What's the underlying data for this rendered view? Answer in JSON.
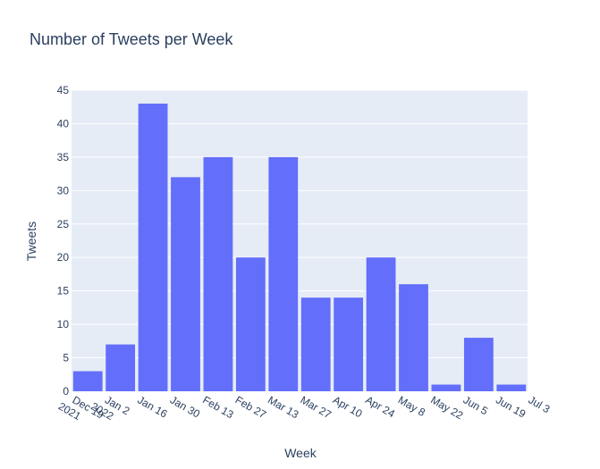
{
  "chart_data": {
    "type": "bar",
    "title": "Number of Tweets per Week",
    "xlabel": "Week",
    "ylabel": "Tweets",
    "ylim": [
      0,
      45
    ],
    "y_ticks": [
      0,
      5,
      10,
      15,
      20,
      25,
      30,
      35,
      40,
      45
    ],
    "x_tick_labels": [
      {
        "line1": "Dec 19",
        "line2": "2021"
      },
      {
        "line1": "Jan 2",
        "line2": "2022"
      },
      {
        "line1": "Jan 16",
        "line2": ""
      },
      {
        "line1": "Jan 30",
        "line2": ""
      },
      {
        "line1": "Feb 13",
        "line2": ""
      },
      {
        "line1": "Feb 27",
        "line2": ""
      },
      {
        "line1": "Mar 13",
        "line2": ""
      },
      {
        "line1": "Mar 27",
        "line2": ""
      },
      {
        "line1": "Apr 10",
        "line2": ""
      },
      {
        "line1": "Apr 24",
        "line2": ""
      },
      {
        "line1": "May 8",
        "line2": ""
      },
      {
        "line1": "May 22",
        "line2": ""
      },
      {
        "line1": "Jun 5",
        "line2": ""
      },
      {
        "line1": "Jun 19",
        "line2": ""
      },
      {
        "line1": "Jul 3",
        "line2": ""
      }
    ],
    "x": [
      "2021-12-19",
      "2022-01-02",
      "2022-01-16",
      "2022-01-30",
      "2022-02-13",
      "2022-02-27",
      "2022-03-13",
      "2022-03-27",
      "2022-04-10",
      "2022-04-24",
      "2022-05-08",
      "2022-05-22",
      "2022-06-05",
      "2022-06-19"
    ],
    "values": [
      3,
      7,
      43,
      32,
      35,
      20,
      35,
      14,
      14,
      20,
      16,
      1,
      8,
      1
    ],
    "grid": true,
    "plot_bgcolor": "#e5ecf6",
    "bar_color": "#636efa",
    "text_color": "#2a3f5f"
  }
}
